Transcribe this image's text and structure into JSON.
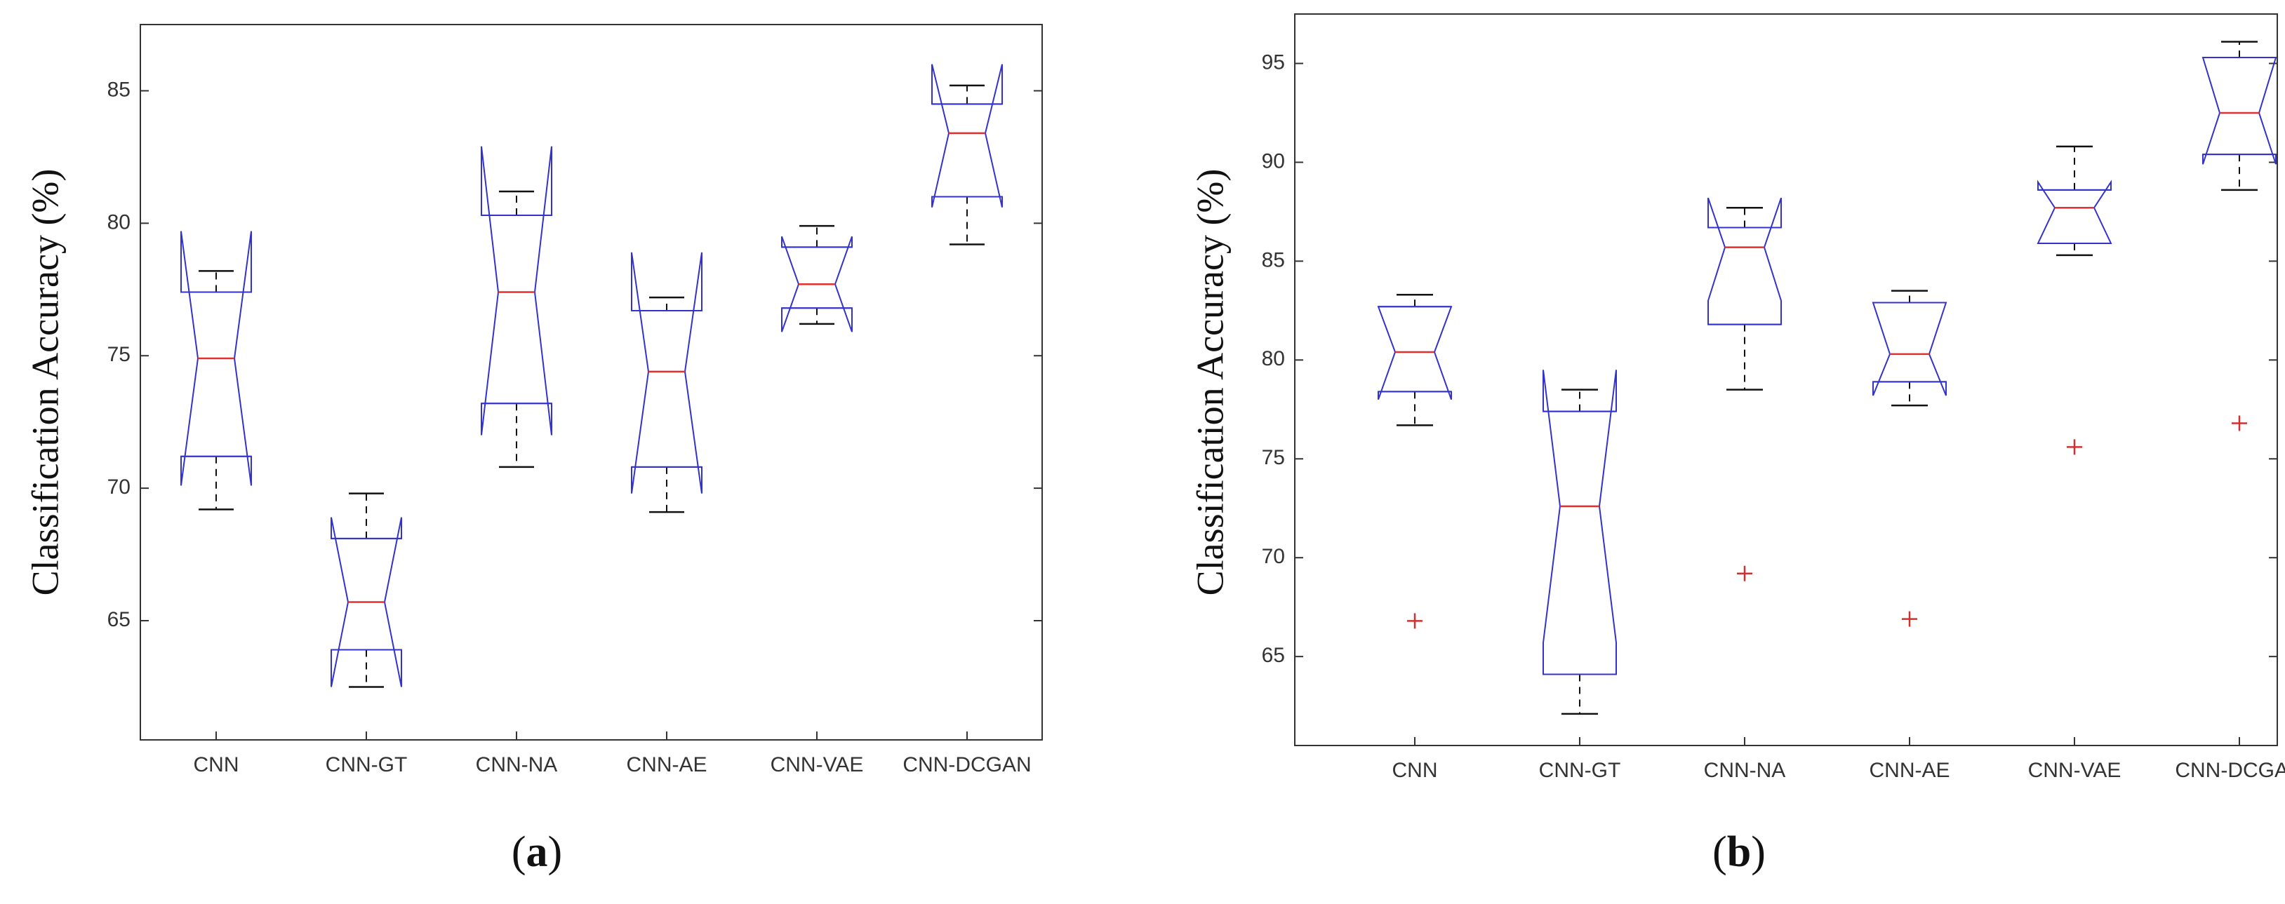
{
  "chart_data": [
    {
      "type": "box",
      "panel_label_open": "(",
      "panel_label_letter": "a",
      "panel_label_close": ")",
      "ylabel": "Classification Accuracy (%)",
      "ylim": [
        60.5,
        87.5
      ],
      "yticks": [
        65,
        70,
        75,
        80,
        85
      ],
      "categories": [
        "CNN",
        "CNN-GT",
        "CNN-NA",
        "CNN-AE",
        "CNN-VAE",
        "CNN-DCGAN"
      ],
      "notched": true,
      "boxes": [
        {
          "whisker_low": 69.2,
          "q1": 71.2,
          "median": 74.9,
          "q3": 77.4,
          "whisker_high": 78.2,
          "notch_low": 70.1,
          "notch_high": 79.7,
          "outliers": []
        },
        {
          "whisker_low": 62.5,
          "q1": 63.9,
          "median": 65.7,
          "q3": 68.1,
          "whisker_high": 69.8,
          "notch_low": 62.5,
          "notch_high": 68.9,
          "outliers": []
        },
        {
          "whisker_low": 70.8,
          "q1": 73.2,
          "median": 77.4,
          "q3": 80.3,
          "whisker_high": 81.2,
          "notch_low": 72.0,
          "notch_high": 82.9,
          "outliers": []
        },
        {
          "whisker_low": 69.1,
          "q1": 70.8,
          "median": 74.4,
          "q3": 76.7,
          "whisker_high": 77.2,
          "notch_low": 69.8,
          "notch_high": 78.9,
          "outliers": []
        },
        {
          "whisker_low": 76.2,
          "q1": 76.8,
          "median": 77.7,
          "q3": 79.1,
          "whisker_high": 79.9,
          "notch_low": 75.9,
          "notch_high": 79.5,
          "outliers": []
        },
        {
          "whisker_low": 79.2,
          "q1": 81.0,
          "median": 83.4,
          "q3": 84.5,
          "whisker_high": 85.2,
          "notch_low": 80.6,
          "notch_high": 86.0,
          "outliers": []
        }
      ]
    },
    {
      "type": "box",
      "panel_label_open": "(",
      "panel_label_letter": "b",
      "panel_label_close": ")",
      "ylabel": "Classification Accuracy (%)",
      "ylim": [
        60.5,
        97.5
      ],
      "yticks": [
        65,
        70,
        75,
        80,
        85,
        90,
        95
      ],
      "categories": [
        "CNN",
        "CNN-GT",
        "CNN-NA",
        "CNN-AE",
        "CNN-VAE",
        "CNN-DCGAN"
      ],
      "notched": true,
      "boxes": [
        {
          "whisker_low": 76.7,
          "q1": 78.4,
          "median": 80.4,
          "q3": 82.7,
          "whisker_high": 83.3,
          "notch_low": 78.0,
          "notch_high": 82.7,
          "outliers": [
            66.8
          ]
        },
        {
          "whisker_low": 62.1,
          "q1": 64.1,
          "median": 72.6,
          "q3": 77.4,
          "whisker_high": 78.5,
          "notch_low": 65.7,
          "notch_high": 79.5,
          "outliers": []
        },
        {
          "whisker_low": 78.5,
          "q1": 81.8,
          "median": 85.7,
          "q3": 86.7,
          "whisker_high": 87.7,
          "notch_low": 83.0,
          "notch_high": 88.2,
          "outliers": [
            69.2
          ]
        },
        {
          "whisker_low": 77.7,
          "q1": 78.9,
          "median": 80.3,
          "q3": 82.9,
          "whisker_high": 83.5,
          "notch_low": 78.2,
          "notch_high": 82.9,
          "outliers": [
            66.9
          ]
        },
        {
          "whisker_low": 85.3,
          "q1": 85.9,
          "median": 87.7,
          "q3": 88.6,
          "whisker_high": 90.8,
          "notch_low": 85.9,
          "notch_high": 89.0,
          "outliers": [
            75.6
          ]
        },
        {
          "whisker_low": 88.6,
          "q1": 90.4,
          "median": 92.5,
          "q3": 95.3,
          "whisker_high": 96.1,
          "notch_low": 89.9,
          "notch_high": 95.3,
          "outliers": [
            76.8
          ]
        }
      ]
    }
  ],
  "colors": {
    "box": "#3333cc",
    "median": "#e03030",
    "whisker": "#111111",
    "outlier": "#d03030",
    "axis": "#333333"
  }
}
